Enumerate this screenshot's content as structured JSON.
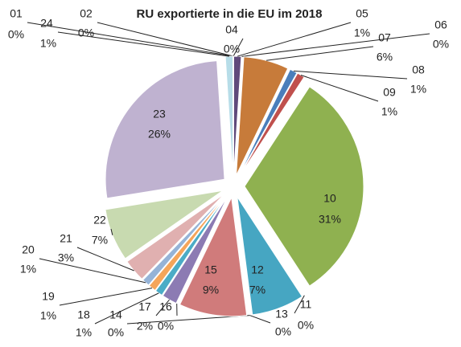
{
  "chart_data": {
    "type": "pie",
    "title": "RU exportierte in die EU im 2018",
    "categories": [
      "01",
      "02",
      "04",
      "05",
      "06",
      "07",
      "08",
      "09",
      "10",
      "11",
      "12",
      "13",
      "14",
      "15",
      "16",
      "17",
      "18",
      "19",
      "20",
      "21",
      "22",
      "23",
      "24"
    ],
    "values": [
      0,
      0,
      0,
      1,
      0,
      6,
      1,
      1,
      31,
      0,
      7,
      0,
      0,
      9,
      0,
      2,
      1,
      1,
      1,
      3,
      7,
      26,
      1
    ],
    "value_labels": [
      "0%",
      "0%",
      "0%",
      "1%",
      "0%",
      "6%",
      "1%",
      "1%",
      "31%",
      "0%",
      "7%",
      "0%",
      "0%",
      "9%",
      "0%",
      "2%",
      "1%",
      "1%",
      "1%",
      "3%",
      "7%",
      "26%",
      "1%"
    ],
    "colors": [
      "#4f81bd",
      "#c0504d",
      "#9bbb59",
      "#604a7b",
      "#4bacc6",
      "#c77b3a",
      "#4a7ebb",
      "#c0504d",
      "#8fb150",
      "#7b68a6",
      "#46a6c2",
      "#4f81bd",
      "#f79646",
      "#d07b7b",
      "#9bbb59",
      "#8c7bb3",
      "#4bacc6",
      "#f5a55a",
      "#95b3d7",
      "#e0b0b0",
      "#c8dab0",
      "#bfb2d0",
      "#b7dde8"
    ]
  }
}
